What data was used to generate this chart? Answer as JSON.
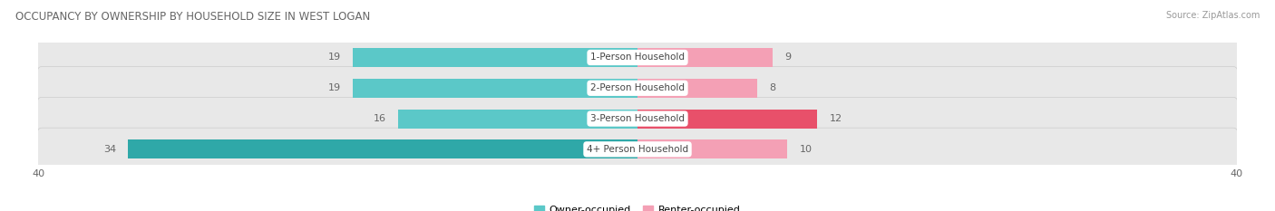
{
  "title": "OCCUPANCY BY OWNERSHIP BY HOUSEHOLD SIZE IN WEST LOGAN",
  "source": "Source: ZipAtlas.com",
  "categories": [
    "1-Person Household",
    "2-Person Household",
    "3-Person Household",
    "4+ Person Household"
  ],
  "owner_values": [
    19,
    19,
    16,
    34
  ],
  "renter_values": [
    9,
    8,
    12,
    10
  ],
  "owner_colors": [
    "#5bc8c8",
    "#5bc8c8",
    "#5bc8c8",
    "#2fa8a8"
  ],
  "renter_colors": [
    "#f4a0b5",
    "#f4a0b5",
    "#e8506a",
    "#f4a0b5"
  ],
  "row_bg_color": "#e8e8e8",
  "axis_max": 40,
  "label_color": "#666666",
  "title_color": "#666666",
  "legend_owner_color": "#5bc8c8",
  "legend_renter_color": "#f4a0b5"
}
